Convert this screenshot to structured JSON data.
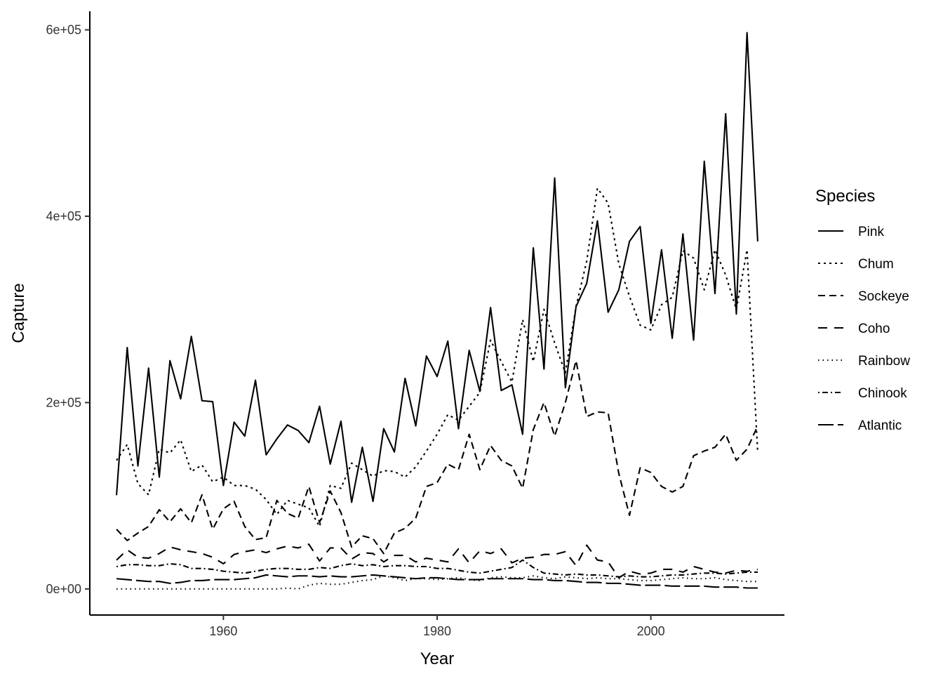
{
  "chart_data": {
    "type": "line",
    "xlabel": "Year",
    "ylabel": "Capture",
    "xlim": [
      1947.5,
      2012.5
    ],
    "ylim": [
      -28000,
      620000
    ],
    "x_ticks": [
      1960,
      1980,
      2000
    ],
    "y_ticks": [
      0,
      200000,
      400000,
      600000
    ],
    "y_tick_labels": [
      "0e+00",
      "2e+05",
      "4e+05",
      "6e+05"
    ],
    "legend": {
      "title": "Species",
      "position": "right"
    },
    "x": [
      1950,
      1951,
      1952,
      1953,
      1954,
      1955,
      1956,
      1957,
      1958,
      1959,
      1960,
      1961,
      1962,
      1963,
      1964,
      1965,
      1966,
      1967,
      1968,
      1969,
      1970,
      1971,
      1972,
      1973,
      1974,
      1975,
      1976,
      1977,
      1978,
      1979,
      1980,
      1981,
      1982,
      1983,
      1984,
      1985,
      1986,
      1987,
      1988,
      1989,
      1990,
      1991,
      1992,
      1993,
      1994,
      1995,
      1996,
      1997,
      1998,
      1999,
      2000,
      2001,
      2002,
      2003,
      2004,
      2005,
      2006,
      2007,
      2008,
      2009,
      2010
    ],
    "series": [
      {
        "name": "Pink",
        "dash": "",
        "values": [
          100600,
          259000,
          132000,
          237000,
          120000,
          245000,
          204000,
          271000,
          202000,
          201000,
          111000,
          179000,
          164000,
          224000,
          144000,
          161000,
          176000,
          170000,
          157000,
          196000,
          134000,
          180000,
          93000,
          152000,
          94000,
          172000,
          147000,
          226000,
          175000,
          250000,
          228000,
          266000,
          172000,
          256000,
          212000,
          302000,
          213000,
          219000,
          166000,
          366000,
          236000,
          441000,
          216000,
          303000,
          328000,
          395000,
          297000,
          321000,
          373000,
          389000,
          285000,
          364000,
          269000,
          381000,
          267000,
          459000,
          317000,
          510000,
          295000,
          597000,
          373000
        ]
      },
      {
        "name": "Chum",
        "dash": "3,5",
        "values": [
          138000,
          155000,
          113000,
          101000,
          150000,
          146000,
          160000,
          126000,
          133000,
          115000,
          120000,
          111000,
          111000,
          107000,
          96000,
          80000,
          95000,
          91000,
          87000,
          67000,
          111000,
          108000,
          135000,
          128000,
          121000,
          127000,
          126000,
          120000,
          131000,
          148000,
          166000,
          187000,
          181000,
          196000,
          211000,
          267000,
          244000,
          222000,
          289000,
          244000,
          300000,
          264000,
          232000,
          303000,
          352000,
          430000,
          414000,
          349000,
          314000,
          283000,
          278000,
          305000,
          313000,
          363000,
          355000,
          321000,
          364000,
          337000,
          300000,
          364000,
          146000
        ]
      },
      {
        "name": "Sockeye",
        "dash": "10,6",
        "values": [
          64000,
          52000,
          60000,
          67000,
          85000,
          72000,
          86000,
          71000,
          101000,
          64000,
          86000,
          94000,
          67000,
          53000,
          55000,
          95000,
          81000,
          76000,
          110000,
          71000,
          105000,
          82000,
          45000,
          57000,
          54000,
          38000,
          60000,
          65000,
          76000,
          110000,
          114000,
          134000,
          128000,
          166000,
          128000,
          154000,
          138000,
          132000,
          108000,
          171000,
          200000,
          164000,
          200000,
          245000,
          185000,
          190000,
          189000,
          124000,
          79000,
          130000,
          125000,
          110000,
          104000,
          110000,
          143000,
          148000,
          152000,
          166000,
          138000,
          150000,
          175000
        ]
      },
      {
        "name": "Coho",
        "dash": "13,10",
        "values": [
          31000,
          42000,
          34000,
          33000,
          38000,
          45000,
          42000,
          40000,
          38000,
          34000,
          27000,
          37000,
          40000,
          42000,
          39000,
          43000,
          46000,
          44000,
          48000,
          30000,
          44000,
          44000,
          32000,
          39000,
          38000,
          29000,
          36000,
          36000,
          29000,
          33000,
          31000,
          29000,
          43000,
          28000,
          41000,
          38000,
          43000,
          28000,
          33000,
          34000,
          37000,
          37000,
          40000,
          25000,
          47000,
          31000,
          29000,
          12000,
          19000,
          16000,
          17000,
          21000,
          21000,
          18000,
          24000,
          21000,
          18000,
          17000,
          20000,
          19000,
          21000
        ]
      },
      {
        "name": "Rainbow",
        "dash": "1.5,5",
        "values": [
          0,
          0,
          0,
          0,
          0,
          0,
          0,
          0,
          0,
          0,
          0,
          0,
          0,
          0,
          0,
          0,
          1000,
          0,
          4000,
          6000,
          5000,
          5000,
          7000,
          9000,
          10000,
          14000,
          12000,
          9000,
          11000,
          11000,
          10000,
          11000,
          12000,
          10000,
          9000,
          12000,
          13000,
          12000,
          12000,
          14000,
          12000,
          11000,
          13000,
          12000,
          11000,
          12000,
          11000,
          11000,
          10000,
          9000,
          9000,
          10000,
          11000,
          12000,
          11000,
          11000,
          12000,
          10000,
          9000,
          8000,
          8000
        ]
      },
      {
        "name": "Chinook",
        "dash": "2,4,8,4",
        "values": [
          24000,
          26000,
          26000,
          25000,
          25000,
          27000,
          26000,
          22000,
          22000,
          21000,
          19000,
          18000,
          17000,
          19000,
          21000,
          22000,
          22000,
          21000,
          21000,
          23000,
          22000,
          25000,
          27000,
          25000,
          26000,
          24000,
          25000,
          25000,
          24000,
          24000,
          22000,
          22000,
          20000,
          18000,
          17000,
          19000,
          21000,
          23000,
          31000,
          23000,
          17000,
          16000,
          15000,
          16000,
          15000,
          15000,
          14000,
          13000,
          14000,
          13000,
          13000,
          14000,
          15000,
          15000,
          16000,
          17000,
          17000,
          16000,
          17000,
          18000,
          18000
        ]
      },
      {
        "name": "Atlantic",
        "dash": "22,6",
        "values": [
          11000,
          10000,
          9000,
          8000,
          8000,
          6000,
          7000,
          9000,
          9000,
          10000,
          10000,
          10000,
          11000,
          12000,
          15000,
          14000,
          13000,
          14000,
          14000,
          13000,
          14000,
          13000,
          13000,
          14000,
          15000,
          14000,
          13000,
          12000,
          11000,
          12000,
          12000,
          11000,
          10000,
          10000,
          10000,
          11000,
          11000,
          11000,
          11000,
          10000,
          10000,
          9000,
          9000,
          8000,
          7000,
          7000,
          6000,
          6000,
          5000,
          4000,
          4000,
          4000,
          3000,
          3000,
          3000,
          3000,
          2000,
          2000,
          2000,
          1000,
          1000
        ]
      }
    ]
  }
}
